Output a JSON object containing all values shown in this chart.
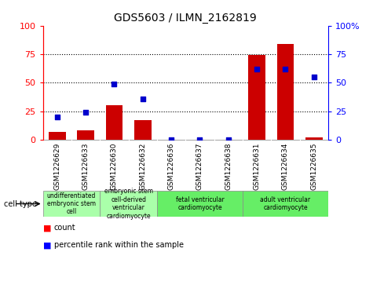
{
  "title": "GDS5603 / ILMN_2162819",
  "samples": [
    "GSM1226629",
    "GSM1226633",
    "GSM1226630",
    "GSM1226632",
    "GSM1226636",
    "GSM1226637",
    "GSM1226638",
    "GSM1226631",
    "GSM1226634",
    "GSM1226635"
  ],
  "counts": [
    7,
    8,
    30,
    17,
    0,
    0,
    0,
    74,
    84,
    2
  ],
  "percentiles": [
    20,
    24,
    49,
    36,
    0,
    0,
    0,
    62,
    62,
    55
  ],
  "cell_types": [
    {
      "label": "undifferentiated\nembryonic stem\ncell",
      "span": [
        0,
        2
      ],
      "color": "#aaffaa"
    },
    {
      "label": "embryonic stem\ncell-derived\nventricular\ncardiomyocyte",
      "span": [
        2,
        4
      ],
      "color": "#aaffaa"
    },
    {
      "label": "fetal ventricular\ncardiomyocyte",
      "span": [
        4,
        7
      ],
      "color": "#66ee66"
    },
    {
      "label": "adult ventricular\ncardiomyocyte",
      "span": [
        7,
        10
      ],
      "color": "#66ee66"
    }
  ],
  "bar_color": "#cc0000",
  "dot_color": "#0000cc",
  "ylim_left": [
    0,
    100
  ],
  "ylim_right": [
    0,
    100
  ],
  "yticks": [
    0,
    25,
    50,
    75,
    100
  ],
  "plot_bg": "white",
  "xtick_bg": "#cccccc"
}
